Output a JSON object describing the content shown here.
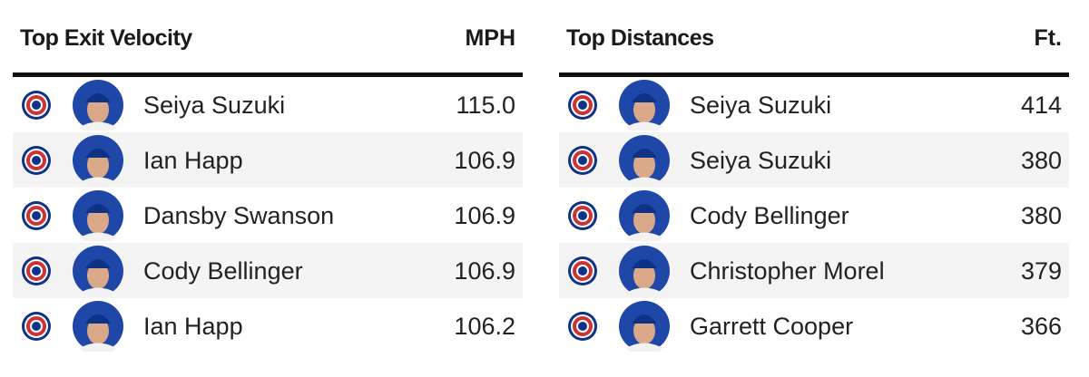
{
  "tables": [
    {
      "title": "Top Exit Velocity",
      "unit": "MPH",
      "rows": [
        [
          "Seiya Suzuki",
          "115.0"
        ],
        [
          "Ian Happ",
          "106.9"
        ],
        [
          "Dansby Swanson",
          "106.9"
        ],
        [
          "Cody Bellinger",
          "106.9"
        ],
        [
          "Ian Happ",
          "106.2"
        ]
      ]
    },
    {
      "title": "Top Distances",
      "unit": "Ft.",
      "rows": [
        [
          "Seiya Suzuki",
          "414"
        ],
        [
          "Seiya Suzuki",
          "380"
        ],
        [
          "Cody Bellinger",
          "380"
        ],
        [
          "Christopher Morel",
          "379"
        ],
        [
          "Garrett Cooper",
          "366"
        ]
      ]
    }
  ]
}
